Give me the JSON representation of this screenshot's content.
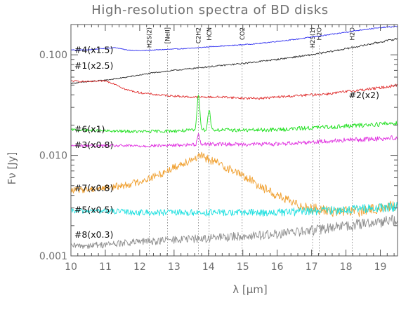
{
  "chart_data": {
    "type": "line",
    "title": "High-resolution spectra of BD disks",
    "xlabel": "λ [μm]",
    "ylabel": "Fν [Jy]",
    "xlim": [
      10,
      19.5
    ],
    "ylim": [
      0.001,
      0.2
    ],
    "yscale": "log",
    "grid": false,
    "legend": "none",
    "xticks": [
      10,
      11,
      12,
      13,
      14,
      15,
      16,
      17,
      18,
      19
    ],
    "yticks": [
      {
        "value": 0.001,
        "label": "0.001"
      },
      {
        "value": 0.01,
        "label": "0.010"
      },
      {
        "value": 0.1,
        "label": "0.100"
      }
    ],
    "features": [
      {
        "label": "H2S(2)",
        "x": 12.28
      },
      {
        "label": "[NeII]",
        "x": 12.81
      },
      {
        "label": "C2H2",
        "x": 13.71
      },
      {
        "label": "HCN",
        "x": 14.02
      },
      {
        "label": "CO2",
        "x": 14.98
      },
      {
        "label": "H2S(1)",
        "x": 17.03
      },
      {
        "label": "H2O",
        "x": 17.22
      },
      {
        "label": "H2O",
        "x": 18.18
      }
    ],
    "series": [
      {
        "name": "#4(x1.5)",
        "color": "#3030f0",
        "noise": 0.012,
        "label_pos": [
          10.1,
          0.113
        ],
        "x": [
          10,
          10.5,
          11,
          11.3,
          11.6,
          12,
          12.5,
          13,
          13.5,
          14,
          14.5,
          15,
          15.5,
          16,
          16.5,
          17,
          17.5,
          18,
          18.5,
          19,
          19.5
        ],
        "y": [
          0.112,
          0.112,
          0.116,
          0.118,
          0.112,
          0.11,
          0.112,
          0.114,
          0.116,
          0.12,
          0.123,
          0.126,
          0.13,
          0.136,
          0.142,
          0.15,
          0.158,
          0.168,
          0.178,
          0.186,
          0.192
        ]
      },
      {
        "name": "#1(x2.5)",
        "color": "#303030",
        "noise": 0.02,
        "label_pos": [
          10.1,
          0.079
        ],
        "x": [
          10,
          10.5,
          11,
          11.5,
          12,
          12.5,
          13,
          13.5,
          14,
          14.5,
          15,
          15.5,
          16,
          16.5,
          17,
          17.5,
          18,
          18.5,
          19,
          19.5
        ],
        "y": [
          0.052,
          0.054,
          0.056,
          0.059,
          0.063,
          0.067,
          0.07,
          0.073,
          0.076,
          0.079,
          0.082,
          0.086,
          0.09,
          0.095,
          0.1,
          0.107,
          0.115,
          0.124,
          0.134,
          0.145
        ]
      },
      {
        "name": "#2(x2)",
        "color": "#e03030",
        "noise": 0.03,
        "label_pos": [
          18.08,
          0.04
        ],
        "x": [
          10,
          10.5,
          11,
          11.3,
          11.6,
          12,
          12.5,
          13,
          13.5,
          14,
          14.5,
          15,
          15.5,
          16,
          16.5,
          17,
          17.5,
          18,
          18.5,
          19,
          19.5
        ],
        "y": [
          0.055,
          0.054,
          0.055,
          0.051,
          0.045,
          0.042,
          0.04,
          0.039,
          0.038,
          0.038,
          0.038,
          0.037,
          0.037,
          0.038,
          0.039,
          0.04,
          0.041,
          0.043,
          0.045,
          0.047,
          0.05
        ]
      },
      {
        "name": "#6(x1)",
        "color": "#20e020",
        "noise": 0.05,
        "label_pos": [
          10.1,
          0.0185
        ],
        "peaks": [
          [
            13.71,
            0.022,
            0.05
          ],
          [
            14.02,
            0.01,
            0.05
          ]
        ],
        "x": [
          10,
          11,
          12,
          13,
          14,
          15,
          16,
          17,
          18,
          19,
          19.5
        ],
        "y": [
          0.018,
          0.0175,
          0.0172,
          0.0175,
          0.018,
          0.0178,
          0.018,
          0.0188,
          0.0195,
          0.0205,
          0.021
        ]
      },
      {
        "name": "#3(x0.8)",
        "color": "#e030e0",
        "noise": 0.05,
        "label_pos": [
          10.1,
          0.0128
        ],
        "peaks": [
          [
            13.71,
            0.004,
            0.04
          ]
        ],
        "x": [
          10,
          11,
          12,
          13,
          14,
          15,
          16,
          17,
          18,
          19,
          19.5
        ],
        "y": [
          0.0125,
          0.0125,
          0.0124,
          0.0126,
          0.013,
          0.0129,
          0.013,
          0.0136,
          0.0142,
          0.0147,
          0.015
        ]
      },
      {
        "name": "#7(x0.8)",
        "color": "#f0a030",
        "noise": 0.12,
        "label_pos": [
          10.1,
          0.0048
        ],
        "x": [
          10,
          10.5,
          11,
          11.5,
          12,
          12.5,
          13,
          13.5,
          13.8,
          14,
          14.5,
          15,
          15.5,
          16,
          16.5,
          17,
          17.5,
          18,
          18.5,
          19,
          19.5
        ],
        "y": [
          0.0045,
          0.0046,
          0.0048,
          0.005,
          0.0055,
          0.0063,
          0.0076,
          0.0092,
          0.0098,
          0.0092,
          0.0077,
          0.0063,
          0.005,
          0.004,
          0.0033,
          0.003,
          0.0028,
          0.0028,
          0.0028,
          0.003,
          0.0032
        ]
      },
      {
        "name": "#5(x0.5)",
        "color": "#20e0e0",
        "noise": 0.1,
        "label_pos": [
          10.1,
          0.0029
        ],
        "x": [
          10,
          11,
          12,
          13,
          14,
          15,
          16,
          17,
          18,
          19,
          19.5
        ],
        "y": [
          0.0028,
          0.0028,
          0.0027,
          0.0027,
          0.0027,
          0.0027,
          0.0027,
          0.0028,
          0.0029,
          0.003,
          0.0031
        ]
      },
      {
        "name": "#8(x0.3)",
        "color": "#8f8f8f",
        "noise": 0.12,
        "label_pos": [
          10.1,
          0.00165
        ],
        "x": [
          10,
          11,
          12,
          13,
          14,
          15,
          16,
          17,
          18,
          19,
          19.5
        ],
        "y": [
          0.00125,
          0.0013,
          0.00138,
          0.00145,
          0.0015,
          0.00158,
          0.00165,
          0.0018,
          0.002,
          0.0022,
          0.0023
        ]
      }
    ]
  }
}
